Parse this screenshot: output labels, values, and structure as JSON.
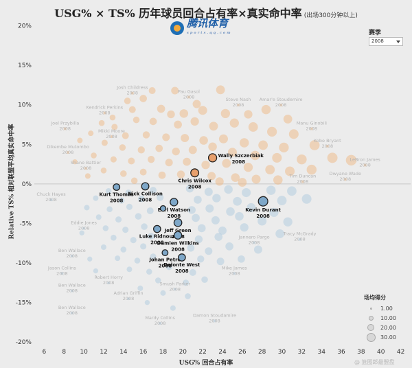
{
  "title": {
    "main": "USG% × TS% 历年球员回合占有率×真实命中率",
    "sub": "(出场300分钟以上)"
  },
  "logo": {
    "text": "腾讯体育",
    "small": "sports.qq.com"
  },
  "filter": {
    "label": "赛季",
    "value": "2008"
  },
  "legend": {
    "title": "场均得分",
    "items": [
      "1.00",
      "10.00",
      "20.00",
      "30.00"
    ]
  },
  "watermark": "@ 篮图郎最盟盘",
  "chart_data": {
    "type": "scatter",
    "xlabel": "USG% 回合占有率",
    "ylabel": "Relative TS% 相对联盟平均真实命中率",
    "xlim": [
      5,
      43
    ],
    "ylim": [
      -0.205,
      0.21
    ],
    "xticks": [
      6,
      8,
      10,
      12,
      14,
      16,
      18,
      20,
      22,
      24,
      26,
      28,
      30,
      32,
      34,
      36,
      38,
      40,
      42
    ],
    "xtick_labels": [
      "6",
      "8",
      "10",
      "12",
      "14",
      "16",
      "18",
      "20",
      "22",
      "24",
      "26",
      "28",
      "30",
      "32",
      "34",
      "36",
      "38",
      "40",
      "42"
    ],
    "yticks": [
      0.2,
      0.15,
      0.1,
      0.05,
      0.0,
      -0.05,
      -0.1,
      -0.15,
      -0.2
    ],
    "ytick_labels": [
      "20%",
      "15%",
      "10%",
      "5%",
      "0%",
      "-5%",
      "-10%",
      "-15%",
      "-20%"
    ],
    "grid": false,
    "legend_position": "bottom-right",
    "colors": {
      "positive": "#f0b47a",
      "negative": "#a9c8de",
      "highlight_pos": "#e8a06d",
      "highlight_neg": "#7ea7c8",
      "zero_line": "#c8c8c8"
    },
    "highlighted": [
      {
        "name": "Wally Szczerbiak",
        "season": "2008",
        "usg": 23.0,
        "ts": 0.033,
        "ppg": 13
      },
      {
        "name": "Chris Wilcox",
        "season": "2008",
        "usg": 21.2,
        "ts": 0.014,
        "ppg": 12
      },
      {
        "name": "Kurt Thomas",
        "season": "2008",
        "usg": 13.3,
        "ts": -0.004,
        "ppg": 6
      },
      {
        "name": "Nick Collison",
        "season": "2008",
        "usg": 16.2,
        "ts": -0.003,
        "ppg": 9
      },
      {
        "name": "Earl Watson",
        "season": "2008",
        "usg": 19.1,
        "ts": -0.023,
        "ppg": 10
      },
      {
        "name": "Kevin Durant",
        "season": "2008",
        "usg": 28.1,
        "ts": -0.022,
        "ppg": 20
      },
      {
        "name": "",
        "season": "",
        "usg": 18.0,
        "ts": -0.031,
        "ppg": 3
      },
      {
        "name": "Jeff Green",
        "season": "2008",
        "usg": 19.5,
        "ts": -0.049,
        "ppg": 11
      },
      {
        "name": "Luke Ridnour",
        "season": "2008",
        "usg": 17.4,
        "ts": -0.057,
        "ppg": 8
      },
      {
        "name": "Damien Wilkins",
        "season": "2008",
        "usg": 19.5,
        "ts": -0.065,
        "ppg": 10
      },
      {
        "name": "Johan Petro",
        "season": "2008",
        "usg": 18.2,
        "ts": -0.087,
        "ppg": 4
      },
      {
        "name": "Delonte West",
        "season": "2008",
        "usg": 19.9,
        "ts": -0.093,
        "ppg": 8
      }
    ],
    "faded_labels": [
      {
        "name": "Josh Childress",
        "season": "2008",
        "usg": 14.9,
        "ts": 0.12
      },
      {
        "name": "Pau Gasol",
        "season": "2008",
        "usg": 20.6,
        "ts": 0.115
      },
      {
        "name": "Steve Nash",
        "season": "2008",
        "usg": 25.6,
        "ts": 0.105
      },
      {
        "name": "Amar'e Stoudemire",
        "season": "2008",
        "usg": 29.9,
        "ts": 0.105
      },
      {
        "name": "Kendrick Perkins",
        "season": "2008",
        "usg": 12.1,
        "ts": 0.095
      },
      {
        "name": "Joel Przybilla",
        "season": "2008",
        "usg": 8.1,
        "ts": 0.075
      },
      {
        "name": "Mikki Moore",
        "season": "2008",
        "usg": 12.8,
        "ts": 0.065
      },
      {
        "name": "Manu Ginobili",
        "season": "2008",
        "usg": 33.0,
        "ts": 0.075
      },
      {
        "name": "Dikembe Mutombo",
        "season": "2008",
        "usg": 8.4,
        "ts": 0.045
      },
      {
        "name": "Kobe Bryant",
        "season": "2008",
        "usg": 34.6,
        "ts": 0.053
      },
      {
        "name": "Shane Battier",
        "season": "2008",
        "usg": 10.2,
        "ts": 0.025
      },
      {
        "name": "LeBron James",
        "season": "2008",
        "usg": 38.4,
        "ts": 0.029
      },
      {
        "name": "Tim Duncan",
        "season": "2008",
        "usg": 32.1,
        "ts": 0.008
      },
      {
        "name": "Dwyane Wade",
        "season": "2008",
        "usg": 36.4,
        "ts": 0.011
      },
      {
        "name": "Chuck Hayes",
        "season": "2008",
        "usg": 6.7,
        "ts": -0.015
      },
      {
        "name": "Eddie Jones",
        "season": "2008",
        "usg": 10.0,
        "ts": -0.051
      },
      {
        "name": "Jannero Pargo",
        "season": "2008",
        "usg": 27.2,
        "ts": -0.069
      },
      {
        "name": "Tracy McGrady",
        "season": "2008",
        "usg": 31.8,
        "ts": -0.065
      },
      {
        "name": "Ben Wallace",
        "season": "2008",
        "usg": 8.8,
        "ts": -0.086
      },
      {
        "name": "Jason Collins",
        "season": "2008",
        "usg": 7.8,
        "ts": -0.108
      },
      {
        "name": "Mike James",
        "season": "2008",
        "usg": 25.2,
        "ts": -0.108
      },
      {
        "name": "Robert Horry",
        "season": "2008",
        "usg": 12.5,
        "ts": -0.12
      },
      {
        "name": "Ben Wallace",
        "season": "2008",
        "usg": 8.8,
        "ts": -0.13
      },
      {
        "name": "Smush Parker",
        "season": "2008",
        "usg": 19.2,
        "ts": -0.128
      },
      {
        "name": "Adrian Griffin",
        "season": "2008",
        "usg": 14.5,
        "ts": -0.14
      },
      {
        "name": "Ben Wallace",
        "season": "2008",
        "usg": 8.8,
        "ts": -0.158
      },
      {
        "name": "Mardy Collins",
        "season": "2008",
        "usg": 17.7,
        "ts": -0.171
      },
      {
        "name": "Damon Stoudamire",
        "season": "2008",
        "usg": 23.2,
        "ts": -0.168
      }
    ],
    "background_points": [
      {
        "usg": 19.2,
        "ts": 0.118,
        "ppg": 10
      },
      {
        "usg": 21.4,
        "ts": 0.101,
        "ppg": 13
      },
      {
        "usg": 23.8,
        "ts": 0.119,
        "ppg": 16
      },
      {
        "usg": 16.0,
        "ts": 0.108,
        "ppg": 9
      },
      {
        "usg": 17.8,
        "ts": 0.095,
        "ppg": 12
      },
      {
        "usg": 14.9,
        "ts": 0.094,
        "ppg": 7
      },
      {
        "usg": 18.8,
        "ts": 0.088,
        "ppg": 11
      },
      {
        "usg": 20.1,
        "ts": 0.089,
        "ppg": 15
      },
      {
        "usg": 22.0,
        "ts": 0.093,
        "ppg": 17
      },
      {
        "usg": 24.3,
        "ts": 0.089,
        "ppg": 18
      },
      {
        "usg": 26.6,
        "ts": 0.088,
        "ppg": 14
      },
      {
        "usg": 28.4,
        "ts": 0.094,
        "ppg": 19
      },
      {
        "usg": 30.6,
        "ts": 0.082,
        "ppg": 16
      },
      {
        "usg": 15.3,
        "ts": 0.081,
        "ppg": 6
      },
      {
        "usg": 17.0,
        "ts": 0.079,
        "ppg": 9
      },
      {
        "usg": 19.5,
        "ts": 0.075,
        "ppg": 12
      },
      {
        "usg": 21.2,
        "ts": 0.079,
        "ppg": 14
      },
      {
        "usg": 23.1,
        "ts": 0.073,
        "ppg": 16
      },
      {
        "usg": 25.2,
        "ts": 0.077,
        "ppg": 18
      },
      {
        "usg": 27.1,
        "ts": 0.072,
        "ppg": 20
      },
      {
        "usg": 29.0,
        "ts": 0.066,
        "ppg": 22
      },
      {
        "usg": 31.2,
        "ts": 0.063,
        "ppg": 21
      },
      {
        "usg": 13.1,
        "ts": 0.072,
        "ppg": 5
      },
      {
        "usg": 11.8,
        "ts": 0.077,
        "ppg": 4
      },
      {
        "usg": 14.2,
        "ts": 0.061,
        "ppg": 7
      },
      {
        "usg": 16.3,
        "ts": 0.062,
        "ppg": 8
      },
      {
        "usg": 18.3,
        "ts": 0.059,
        "ppg": 10
      },
      {
        "usg": 20.2,
        "ts": 0.058,
        "ppg": 13
      },
      {
        "usg": 22.1,
        "ts": 0.055,
        "ppg": 15
      },
      {
        "usg": 24.1,
        "ts": 0.057,
        "ppg": 17
      },
      {
        "usg": 26.2,
        "ts": 0.052,
        "ppg": 19
      },
      {
        "usg": 28.1,
        "ts": 0.049,
        "ppg": 20
      },
      {
        "usg": 30.2,
        "ts": 0.046,
        "ppg": 22
      },
      {
        "usg": 33.3,
        "ts": 0.049,
        "ppg": 24
      },
      {
        "usg": 12.1,
        "ts": 0.052,
        "ppg": 5
      },
      {
        "usg": 13.9,
        "ts": 0.046,
        "ppg": 6
      },
      {
        "usg": 15.8,
        "ts": 0.043,
        "ppg": 8
      },
      {
        "usg": 17.6,
        "ts": 0.045,
        "ppg": 9
      },
      {
        "usg": 19.3,
        "ts": 0.041,
        "ppg": 11
      },
      {
        "usg": 21.0,
        "ts": 0.043,
        "ppg": 13
      },
      {
        "usg": 23.0,
        "ts": 0.047,
        "ppg": 15
      },
      {
        "usg": 25.0,
        "ts": 0.04,
        "ppg": 17
      },
      {
        "usg": 27.3,
        "ts": 0.036,
        "ppg": 19
      },
      {
        "usg": 29.5,
        "ts": 0.033,
        "ppg": 21
      },
      {
        "usg": 32.0,
        "ts": 0.031,
        "ppg": 23
      },
      {
        "usg": 35.1,
        "ts": 0.033,
        "ppg": 25
      },
      {
        "usg": 37.0,
        "ts": 0.03,
        "ppg": 28
      },
      {
        "usg": 11.0,
        "ts": 0.036,
        "ppg": 4
      },
      {
        "usg": 13.0,
        "ts": 0.031,
        "ppg": 5
      },
      {
        "usg": 14.8,
        "ts": 0.029,
        "ppg": 7
      },
      {
        "usg": 16.8,
        "ts": 0.031,
        "ppg": 8
      },
      {
        "usg": 18.6,
        "ts": 0.027,
        "ppg": 10
      },
      {
        "usg": 20.4,
        "ts": 0.028,
        "ppg": 12
      },
      {
        "usg": 22.3,
        "ts": 0.024,
        "ppg": 14
      },
      {
        "usg": 24.4,
        "ts": 0.026,
        "ppg": 16
      },
      {
        "usg": 26.6,
        "ts": 0.021,
        "ppg": 18
      },
      {
        "usg": 28.8,
        "ts": 0.018,
        "ppg": 20
      },
      {
        "usg": 30.8,
        "ts": 0.016,
        "ppg": 21
      },
      {
        "usg": 33.0,
        "ts": 0.018,
        "ppg": 23
      },
      {
        "usg": 12.0,
        "ts": 0.017,
        "ppg": 4
      },
      {
        "usg": 14.0,
        "ts": 0.013,
        "ppg": 6
      },
      {
        "usg": 16.0,
        "ts": 0.015,
        "ppg": 7
      },
      {
        "usg": 17.9,
        "ts": 0.011,
        "ppg": 9
      },
      {
        "usg": 19.8,
        "ts": 0.012,
        "ppg": 11
      },
      {
        "usg": 22.9,
        "ts": 0.01,
        "ppg": 13
      },
      {
        "usg": 25.3,
        "ts": 0.008,
        "ppg": 15
      },
      {
        "usg": 27.4,
        "ts": 0.006,
        "ppg": 17
      },
      {
        "usg": 29.6,
        "ts": 0.005,
        "ppg": 19
      },
      {
        "usg": 10.4,
        "ts": 0.01,
        "ppg": 3
      },
      {
        "usg": 15.1,
        "ts": 0.004,
        "ppg": 6
      },
      {
        "usg": 23.7,
        "ts": 0.003,
        "ppg": 14
      },
      {
        "usg": 26.0,
        "ts": 0.002,
        "ppg": 16
      },
      {
        "usg": 9.6,
        "ts": 0.055,
        "ppg": 3
      },
      {
        "usg": 10.7,
        "ts": 0.064,
        "ppg": 3
      },
      {
        "usg": 14.4,
        "ts": 0.105,
        "ppg": 6
      },
      {
        "usg": 16.9,
        "ts": 0.118,
        "ppg": 7
      },
      {
        "usg": 12.9,
        "ts": 0.084,
        "ppg": 4
      },
      {
        "usg": 9.1,
        "ts": 0.028,
        "ppg": 2
      },
      {
        "usg": 12.5,
        "ts": -0.009,
        "ppg": 4
      },
      {
        "usg": 14.5,
        "ts": -0.011,
        "ppg": 5
      },
      {
        "usg": 17.0,
        "ts": -0.008,
        "ppg": 7
      },
      {
        "usg": 20.7,
        "ts": -0.006,
        "ppg": 11
      },
      {
        "usg": 22.6,
        "ts": -0.01,
        "ppg": 13
      },
      {
        "usg": 24.6,
        "ts": -0.007,
        "ppg": 15
      },
      {
        "usg": 26.4,
        "ts": -0.011,
        "ppg": 17
      },
      {
        "usg": 28.9,
        "ts": -0.008,
        "ppg": 19
      },
      {
        "usg": 31.0,
        "ts": -0.009,
        "ppg": 20
      },
      {
        "usg": 11.2,
        "ts": -0.018,
        "ppg": 3
      },
      {
        "usg": 13.8,
        "ts": -0.021,
        "ppg": 5
      },
      {
        "usg": 15.8,
        "ts": -0.019,
        "ppg": 6
      },
      {
        "usg": 17.7,
        "ts": -0.017,
        "ppg": 8
      },
      {
        "usg": 21.5,
        "ts": -0.02,
        "ppg": 12
      },
      {
        "usg": 23.4,
        "ts": -0.018,
        "ppg": 14
      },
      {
        "usg": 25.5,
        "ts": -0.022,
        "ppg": 16
      },
      {
        "usg": 30.0,
        "ts": -0.021,
        "ppg": 20
      },
      {
        "usg": 32.5,
        "ts": -0.019,
        "ppg": 21
      },
      {
        "usg": 10.3,
        "ts": -0.03,
        "ppg": 3
      },
      {
        "usg": 12.6,
        "ts": -0.032,
        "ppg": 4
      },
      {
        "usg": 14.6,
        "ts": -0.029,
        "ppg": 5
      },
      {
        "usg": 16.7,
        "ts": -0.034,
        "ppg": 7
      },
      {
        "usg": 20.9,
        "ts": -0.033,
        "ppg": 11
      },
      {
        "usg": 22.7,
        "ts": -0.031,
        "ppg": 13
      },
      {
        "usg": 24.8,
        "ts": -0.035,
        "ppg": 15
      },
      {
        "usg": 26.9,
        "ts": -0.03,
        "ppg": 17
      },
      {
        "usg": 29.2,
        "ts": -0.036,
        "ppg": 18
      },
      {
        "usg": 11.5,
        "ts": -0.042,
        "ppg": 3
      },
      {
        "usg": 13.5,
        "ts": -0.045,
        "ppg": 5
      },
      {
        "usg": 15.5,
        "ts": -0.041,
        "ppg": 6
      },
      {
        "usg": 21.3,
        "ts": -0.043,
        "ppg": 12
      },
      {
        "usg": 23.3,
        "ts": -0.046,
        "ppg": 13
      },
      {
        "usg": 25.7,
        "ts": -0.041,
        "ppg": 15
      },
      {
        "usg": 28.0,
        "ts": -0.047,
        "ppg": 17
      },
      {
        "usg": 12.2,
        "ts": -0.056,
        "ppg": 4
      },
      {
        "usg": 14.2,
        "ts": -0.058,
        "ppg": 5
      },
      {
        "usg": 16.1,
        "ts": -0.054,
        "ppg": 6
      },
      {
        "usg": 21.9,
        "ts": -0.056,
        "ppg": 12
      },
      {
        "usg": 24.0,
        "ts": -0.059,
        "ppg": 13
      },
      {
        "usg": 26.2,
        "ts": -0.055,
        "ppg": 14
      },
      {
        "usg": 13.0,
        "ts": -0.068,
        "ppg": 4
      },
      {
        "usg": 15.0,
        "ts": -0.071,
        "ppg": 5
      },
      {
        "usg": 16.8,
        "ts": -0.066,
        "ppg": 6
      },
      {
        "usg": 21.6,
        "ts": -0.07,
        "ppg": 11
      },
      {
        "usg": 23.6,
        "ts": -0.067,
        "ppg": 12
      },
      {
        "usg": 12.0,
        "ts": -0.08,
        "ppg": 3
      },
      {
        "usg": 14.0,
        "ts": -0.083,
        "ppg": 4
      },
      {
        "usg": 16.0,
        "ts": -0.079,
        "ppg": 5
      },
      {
        "usg": 20.8,
        "ts": -0.081,
        "ppg": 9
      },
      {
        "usg": 22.6,
        "ts": -0.085,
        "ppg": 10
      },
      {
        "usg": 24.7,
        "ts": -0.079,
        "ppg": 12
      },
      {
        "usg": 13.4,
        "ts": -0.094,
        "ppg": 3
      },
      {
        "usg": 15.4,
        "ts": -0.097,
        "ppg": 4
      },
      {
        "usg": 17.0,
        "ts": -0.092,
        "ppg": 5
      },
      {
        "usg": 21.8,
        "ts": -0.095,
        "ppg": 8
      },
      {
        "usg": 23.8,
        "ts": -0.098,
        "ppg": 10
      },
      {
        "usg": 14.6,
        "ts": -0.108,
        "ppg": 3
      },
      {
        "usg": 16.6,
        "ts": -0.111,
        "ppg": 4
      },
      {
        "usg": 18.6,
        "ts": -0.105,
        "ppg": 5
      },
      {
        "usg": 21.0,
        "ts": -0.112,
        "ppg": 7
      },
      {
        "usg": 11.2,
        "ts": -0.11,
        "ppg": 2
      },
      {
        "usg": 17.5,
        "ts": -0.122,
        "ppg": 4
      },
      {
        "usg": 20.3,
        "ts": -0.125,
        "ppg": 5
      },
      {
        "usg": 22.2,
        "ts": -0.121,
        "ppg": 6
      },
      {
        "usg": 15.7,
        "ts": -0.132,
        "ppg": 3
      },
      {
        "usg": 18.0,
        "ts": -0.138,
        "ppg": 3
      },
      {
        "usg": 20.5,
        "ts": -0.142,
        "ppg": 4
      },
      {
        "usg": 9.8,
        "ts": -0.062,
        "ppg": 2
      },
      {
        "usg": 10.6,
        "ts": -0.095,
        "ppg": 2
      },
      {
        "usg": 25.9,
        "ts": -0.095,
        "ppg": 9
      },
      {
        "usg": 27.6,
        "ts": -0.083,
        "ppg": 13
      },
      {
        "usg": 29.8,
        "ts": -0.063,
        "ppg": 16
      },
      {
        "usg": 30.6,
        "ts": -0.048,
        "ppg": 18
      },
      {
        "usg": 19.0,
        "ts": -0.157,
        "ppg": 3
      },
      {
        "usg": 16.4,
        "ts": -0.15,
        "ppg": 2
      }
    ]
  }
}
